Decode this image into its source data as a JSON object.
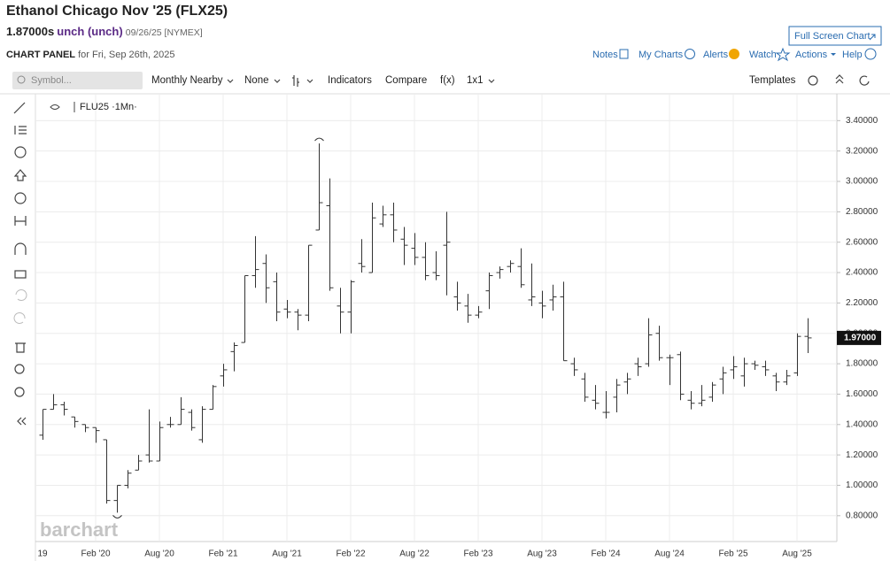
{
  "header": {
    "title": "Ethanol Chicago Nov '25 (FLX25)",
    "price": "1.87000s",
    "change": "unch (unch)",
    "date": "09/26/25 [NYMEX]",
    "full_screen": "Full Screen Chart",
    "panel": "CHART PANEL",
    "panel_date": "for Fri, Sep 26th, 2025",
    "menu": [
      "Notes",
      "My Charts",
      "Alerts",
      "Watch",
      "Actions",
      "Help"
    ]
  },
  "toolbar": {
    "symbol": "Symbol...",
    "period": "Monthly Nearby",
    "aggregation": "None",
    "items": [
      "Indicators",
      "Compare",
      "f(x)",
      "1x1"
    ],
    "templates": "Templates"
  },
  "watermark": "barchart",
  "chart_data": {
    "type": "ohlc",
    "legend": "FLU25 ·1Mn·",
    "x": [
      "2019-09",
      "2019-10",
      "2019-11",
      "2019-12",
      "2020-01",
      "2020-02",
      "2020-03",
      "2020-04",
      "2020-05",
      "2020-06",
      "2020-07",
      "2020-08",
      "2020-09",
      "2020-10",
      "2020-11",
      "2020-12",
      "2021-01",
      "2021-02",
      "2021-03",
      "2021-04",
      "2021-05",
      "2021-06",
      "2021-07",
      "2021-08",
      "2021-09",
      "2021-10",
      "2021-11",
      "2021-12",
      "2022-01",
      "2022-02",
      "2022-03",
      "2022-04",
      "2022-05",
      "2022-06",
      "2022-07",
      "2022-08",
      "2022-09",
      "2022-10",
      "2022-11",
      "2022-12",
      "2023-01",
      "2023-02",
      "2023-03",
      "2023-04",
      "2023-05",
      "2023-06",
      "2023-07",
      "2023-08",
      "2023-09",
      "2023-10",
      "2023-11",
      "2023-12",
      "2024-01",
      "2024-02",
      "2024-03",
      "2024-04",
      "2024-05",
      "2024-06",
      "2024-07",
      "2024-08",
      "2024-09",
      "2024-10",
      "2024-11",
      "2024-12",
      "2025-01",
      "2025-02",
      "2025-03",
      "2025-04",
      "2025-05",
      "2025-06",
      "2025-07",
      "2025-08",
      "2025-09"
    ],
    "open": [
      1.33,
      1.5,
      1.53,
      1.45,
      1.4,
      1.38,
      1.3,
      0.9,
      1.0,
      1.1,
      1.2,
      1.16,
      1.4,
      1.4,
      1.48,
      1.3,
      1.5,
      1.72,
      1.88,
      1.94,
      2.38,
      2.46,
      2.34,
      2.16,
      2.14,
      2.12,
      2.68,
      2.84,
      2.18,
      2.14,
      2.46,
      2.4,
      2.72,
      2.78,
      2.62,
      2.56,
      2.5,
      2.4,
      2.58,
      2.24,
      2.18,
      2.12,
      2.28,
      2.4,
      2.44,
      2.44,
      2.22,
      2.2,
      2.22,
      2.24,
      1.8,
      1.7,
      1.56,
      1.48,
      1.58,
      1.68,
      1.8,
      1.8,
      2.0,
      1.84,
      1.86,
      1.56,
      1.54,
      1.58,
      1.7,
      1.76,
      1.72,
      1.8,
      1.78,
      1.72,
      1.68,
      1.74,
      1.98
    ],
    "high": [
      1.5,
      1.6,
      1.55,
      1.45,
      1.4,
      1.38,
      1.3,
      1.0,
      1.1,
      1.2,
      1.5,
      1.42,
      1.45,
      1.58,
      1.5,
      1.52,
      1.66,
      1.8,
      1.94,
      2.38,
      2.64,
      2.52,
      2.4,
      2.22,
      2.16,
      2.58,
      3.25,
      3.02,
      2.3,
      2.35,
      2.62,
      2.86,
      2.84,
      2.86,
      2.7,
      2.66,
      2.6,
      2.54,
      2.8,
      2.34,
      2.26,
      2.18,
      2.4,
      2.44,
      2.48,
      2.56,
      2.46,
      2.28,
      2.32,
      2.34,
      1.84,
      1.74,
      1.66,
      1.62,
      1.7,
      1.74,
      1.84,
      2.1,
      2.05,
      1.86,
      1.88,
      1.62,
      1.66,
      1.68,
      1.78,
      1.85,
      1.84,
      1.82,
      1.82,
      1.74,
      1.76,
      2.0,
      2.1
    ],
    "low": [
      1.3,
      1.5,
      1.46,
      1.38,
      1.35,
      1.28,
      0.88,
      0.82,
      0.98,
      1.1,
      1.15,
      1.16,
      1.38,
      1.4,
      1.36,
      1.28,
      1.5,
      1.65,
      1.75,
      1.94,
      2.3,
      2.2,
      2.08,
      2.1,
      2.02,
      2.08,
      2.68,
      2.28,
      2.0,
      2.0,
      2.4,
      2.4,
      2.7,
      2.6,
      2.45,
      2.45,
      2.35,
      2.35,
      2.25,
      2.15,
      2.07,
      2.1,
      2.16,
      2.36,
      2.4,
      2.3,
      2.18,
      2.1,
      2.15,
      1.82,
      1.72,
      1.55,
      1.5,
      1.44,
      1.48,
      1.6,
      1.72,
      1.78,
      1.82,
      1.66,
      1.56,
      1.5,
      1.52,
      1.55,
      1.6,
      1.7,
      1.65,
      1.76,
      1.72,
      1.62,
      1.66,
      1.72,
      1.87
    ],
    "close": [
      1.5,
      1.53,
      1.5,
      1.42,
      1.38,
      1.36,
      0.9,
      1.0,
      1.08,
      1.16,
      1.16,
      1.38,
      1.4,
      1.5,
      1.38,
      1.5,
      1.65,
      1.76,
      1.92,
      2.38,
      2.42,
      2.3,
      2.14,
      2.14,
      2.12,
      2.58,
      2.86,
      2.3,
      2.14,
      2.34,
      2.44,
      2.76,
      2.78,
      2.68,
      2.58,
      2.5,
      2.38,
      2.38,
      2.6,
      2.2,
      2.12,
      2.14,
      2.38,
      2.42,
      2.46,
      2.32,
      2.24,
      2.18,
      2.24,
      1.82,
      1.76,
      1.58,
      1.54,
      1.48,
      1.66,
      1.7,
      1.78,
      1.99,
      1.84,
      1.84,
      1.6,
      1.54,
      1.56,
      1.66,
      1.74,
      1.78,
      1.8,
      1.79,
      1.76,
      1.68,
      1.72,
      1.98,
      1.97
    ],
    "last_price": {
      "value": 1.97,
      "label": "1.97000"
    },
    "xlim": [
      "2019-08",
      "2025-11"
    ],
    "xticks": [
      {
        "value": "2019-08",
        "label": "19"
      },
      {
        "value": "2020-02",
        "label": "Feb '20"
      },
      {
        "value": "2020-08",
        "label": "Aug '20"
      },
      {
        "value": "2021-02",
        "label": "Feb '21"
      },
      {
        "value": "2021-08",
        "label": "Aug '21"
      },
      {
        "value": "2022-02",
        "label": "Feb '22"
      },
      {
        "value": "2022-08",
        "label": "Aug '22"
      },
      {
        "value": "2023-02",
        "label": "Feb '23"
      },
      {
        "value": "2023-08",
        "label": "Aug '23"
      },
      {
        "value": "2024-02",
        "label": "Feb '24"
      },
      {
        "value": "2024-08",
        "label": "Aug '24"
      },
      {
        "value": "2025-02",
        "label": "Feb '25"
      },
      {
        "value": "2025-08",
        "label": "Aug '25"
      }
    ],
    "ylim": [
      0.63,
      3.53
    ],
    "yticks": [
      {
        "value": 0.8,
        "label": "0.80000"
      },
      {
        "value": 1.0,
        "label": "1.00000"
      },
      {
        "value": 1.2,
        "label": "1.20000"
      },
      {
        "value": 1.4,
        "label": "1.40000"
      },
      {
        "value": 1.6,
        "label": "1.60000"
      },
      {
        "value": 1.8,
        "label": "1.80000"
      },
      {
        "value": 2.0,
        "label": "2.00000"
      },
      {
        "value": 2.2,
        "label": "2.20000"
      },
      {
        "value": 2.4,
        "label": "2.40000"
      },
      {
        "value": 2.6,
        "label": "2.60000"
      },
      {
        "value": 2.8,
        "label": "2.80000"
      },
      {
        "value": 3.0,
        "label": "3.00000"
      },
      {
        "value": 3.2,
        "label": "3.20000"
      },
      {
        "value": 3.4,
        "label": "3.40000"
      }
    ],
    "grid": true,
    "color": "#333333"
  }
}
